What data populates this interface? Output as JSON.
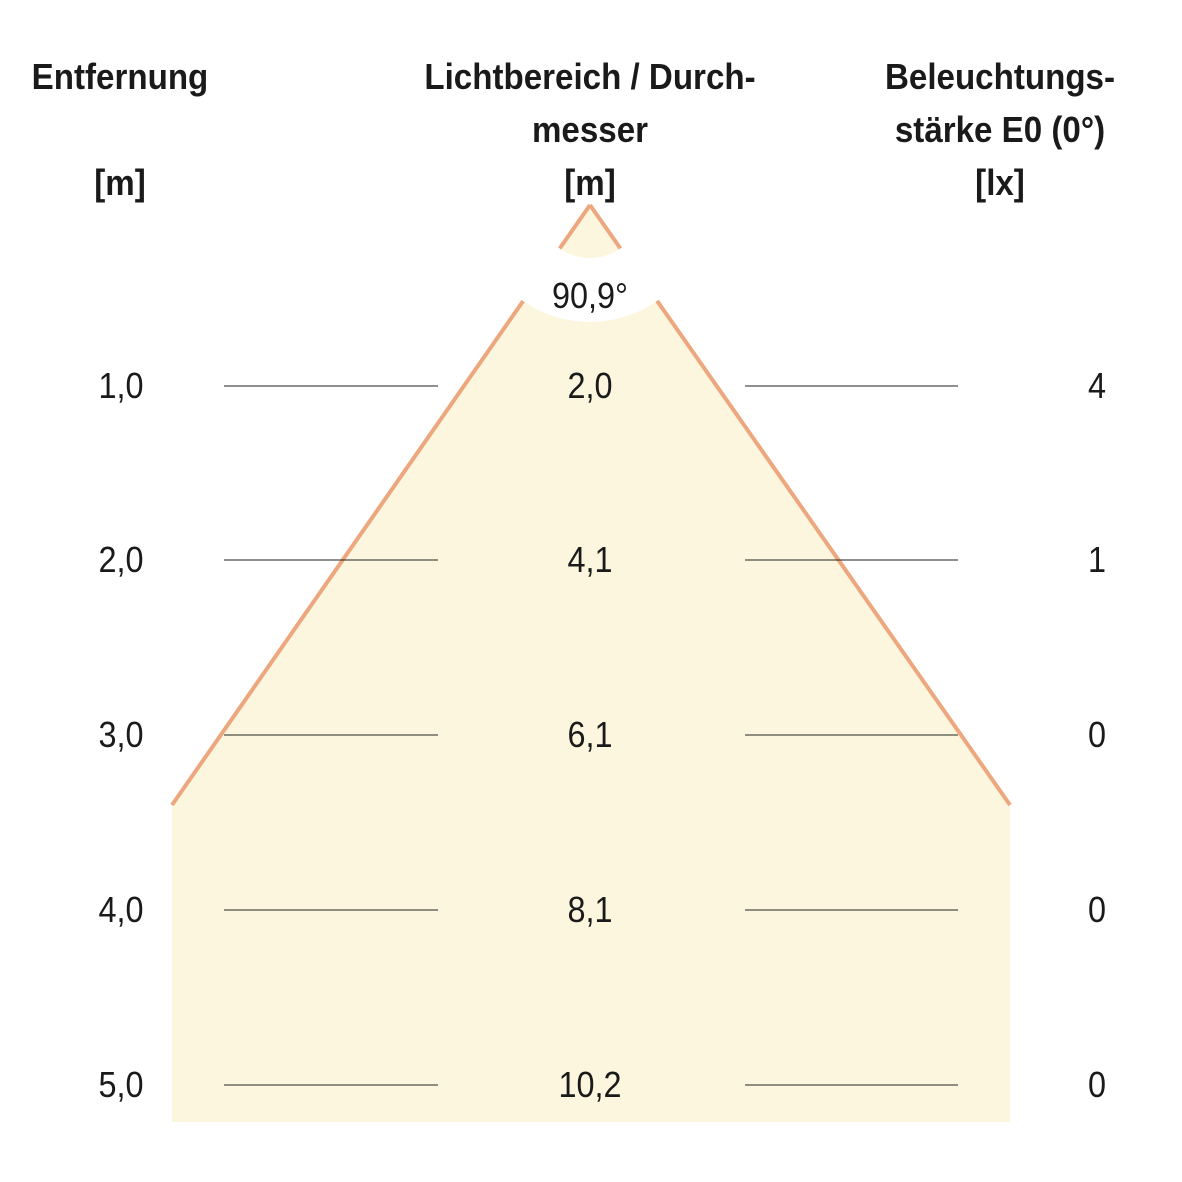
{
  "headers": {
    "distance": {
      "title": "Entfernung",
      "unit": "[m]"
    },
    "diameter": {
      "title": "Lichtbereich / Durch-",
      "title2": "messer",
      "unit": "[m]"
    },
    "illuminance": {
      "title": "Beleuchtungs-",
      "title2": "stärke E0 (0°)",
      "unit": "[lx]"
    }
  },
  "beam_angle": "90,9°",
  "rows": [
    {
      "distance": "1,0",
      "diameter": "2,0",
      "lux": "4"
    },
    {
      "distance": "2,0",
      "diameter": "4,1",
      "lux": "1"
    },
    {
      "distance": "3,0",
      "diameter": "6,1",
      "lux": "0"
    },
    {
      "distance": "4,0",
      "diameter": "8,1",
      "lux": "0"
    },
    {
      "distance": "5,0",
      "diameter": "10,2",
      "lux": "0"
    }
  ],
  "colors": {
    "cone_fill": "#fcf6df",
    "cone_edge": "#eda77e"
  }
}
